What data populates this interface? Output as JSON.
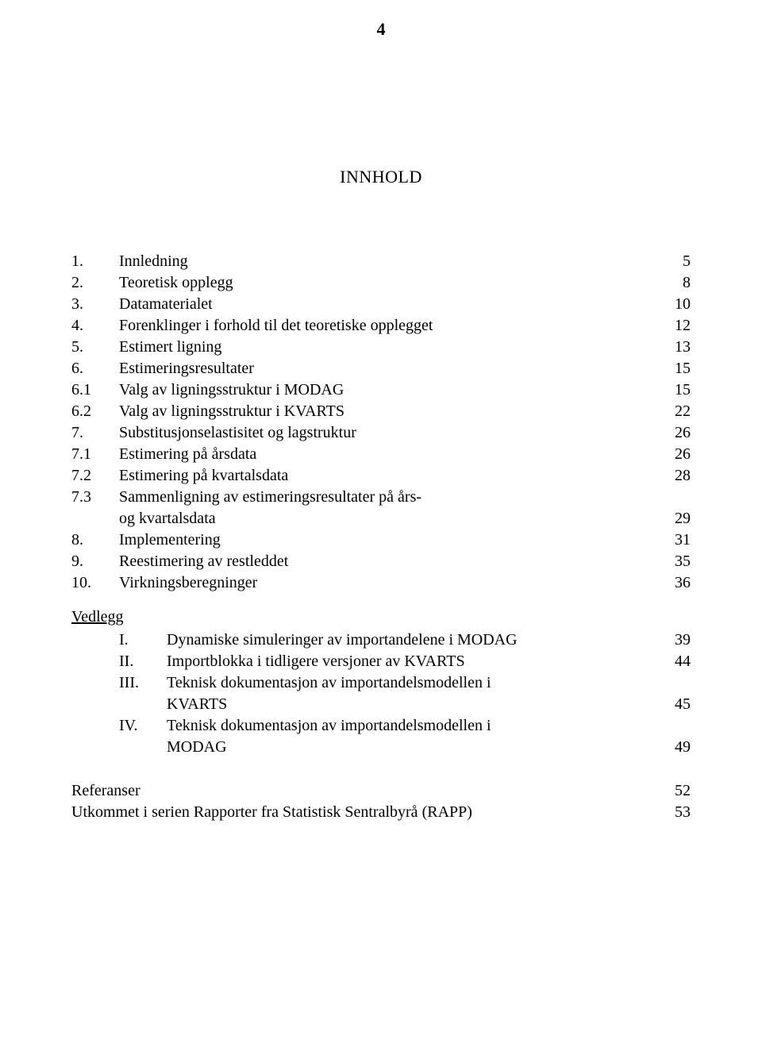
{
  "page_number": "4",
  "title": "INNHOLD",
  "toc": {
    "main": [
      {
        "num": "1.",
        "label": "Innledning",
        "page": "5"
      },
      {
        "num": "2.",
        "label": "Teoretisk opplegg",
        "page": "8"
      },
      {
        "num": "3.",
        "label": "Datamaterialet",
        "page": "10"
      },
      {
        "num": "4.",
        "label": "Forenklinger i forhold til det teoretiske opplegget",
        "page": "12"
      },
      {
        "num": "5.",
        "label": "Estimert ligning",
        "page": "13"
      },
      {
        "num": "6.",
        "label": "Estimeringsresultater",
        "page": "15"
      },
      {
        "num": "6.1",
        "label": "Valg av ligningsstruktur i MODAG",
        "page": "15"
      },
      {
        "num": "6.2",
        "label": "Valg av ligningsstruktur i KVARTS",
        "page": "22"
      },
      {
        "num": "7.",
        "label": "Substitusjonselastisitet og lagstruktur",
        "page": "26"
      },
      {
        "num": "7.1",
        "label": "Estimering på årsdata",
        "page": "26"
      },
      {
        "num": "7.2",
        "label": "Estimering på kvartalsdata",
        "page": "28"
      },
      {
        "num": "7.3",
        "label1": "Sammenligning av estimeringsresultater på års-",
        "label2": "og kvartalsdata",
        "page": "29",
        "multiline": true
      },
      {
        "num": "8.",
        "label": "Implementering",
        "page": "31"
      },
      {
        "num": "9.",
        "label": "Reestimering av restleddet",
        "page": "35"
      },
      {
        "num": "10.",
        "label": "Virkningsberegninger",
        "page": "36"
      }
    ],
    "vedlegg_title": "Vedlegg",
    "vedlegg": [
      {
        "num": "I.",
        "label": "Dynamiske simuleringer av importandelene i MODAG",
        "page": "39",
        "leader": false
      },
      {
        "num": "II.",
        "label": "Importblokka i tidligere versjoner av KVARTS",
        "page": "44",
        "leader": true
      },
      {
        "num": "III.",
        "label1": "Teknisk dokumentasjon av importandelsmodellen i",
        "label2": "KVARTS",
        "page": "45",
        "multiline": true
      },
      {
        "num": "IV.",
        "label1": "Teknisk dokumentasjon av importandelsmodellen i",
        "label2": "MODAG",
        "page": "49",
        "multiline": true
      }
    ],
    "refs": [
      {
        "label": "Referanser",
        "page": "52",
        "leader": true
      },
      {
        "label": "Utkommet i serien Rapporter fra Statistisk Sentralbyrå (RAPP)",
        "page": "53",
        "leader": true
      }
    ]
  }
}
